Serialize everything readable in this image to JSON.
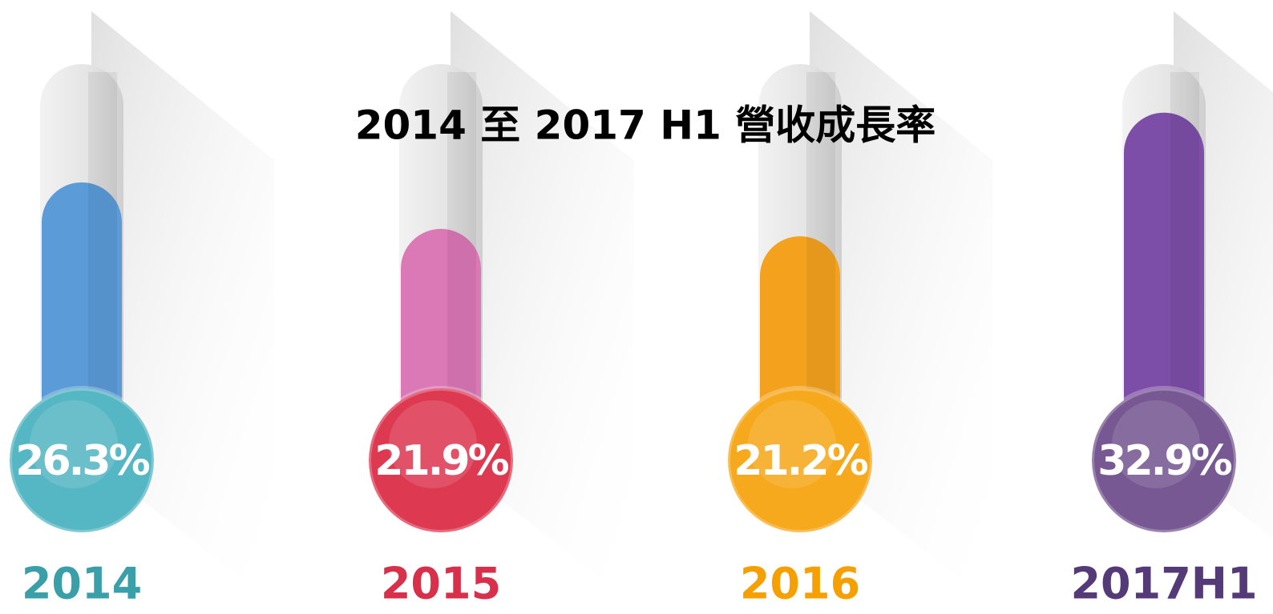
{
  "chart_data": {
    "type": "thermometer",
    "title": "2014  至  2017 H1 營收成長率",
    "categories": [
      "2014",
      "2015",
      "2016",
      "2017H1"
    ],
    "values": [
      26.3,
      21.9,
      21.2,
      32.9
    ],
    "value_labels": [
      "26.3%",
      "21.9%",
      "21.2%",
      "32.9%"
    ],
    "tube_colors": [
      "#5b9bd8",
      "#db78b6",
      "#f4a21e",
      "#7d4ea8"
    ],
    "bulb_colors": [
      "#56b7c4",
      "#dd3a52",
      "#f6a91c",
      "#775892"
    ],
    "label_colors": [
      "#3a9fa9",
      "#d8304a",
      "#f5a000",
      "#553a78"
    ]
  }
}
